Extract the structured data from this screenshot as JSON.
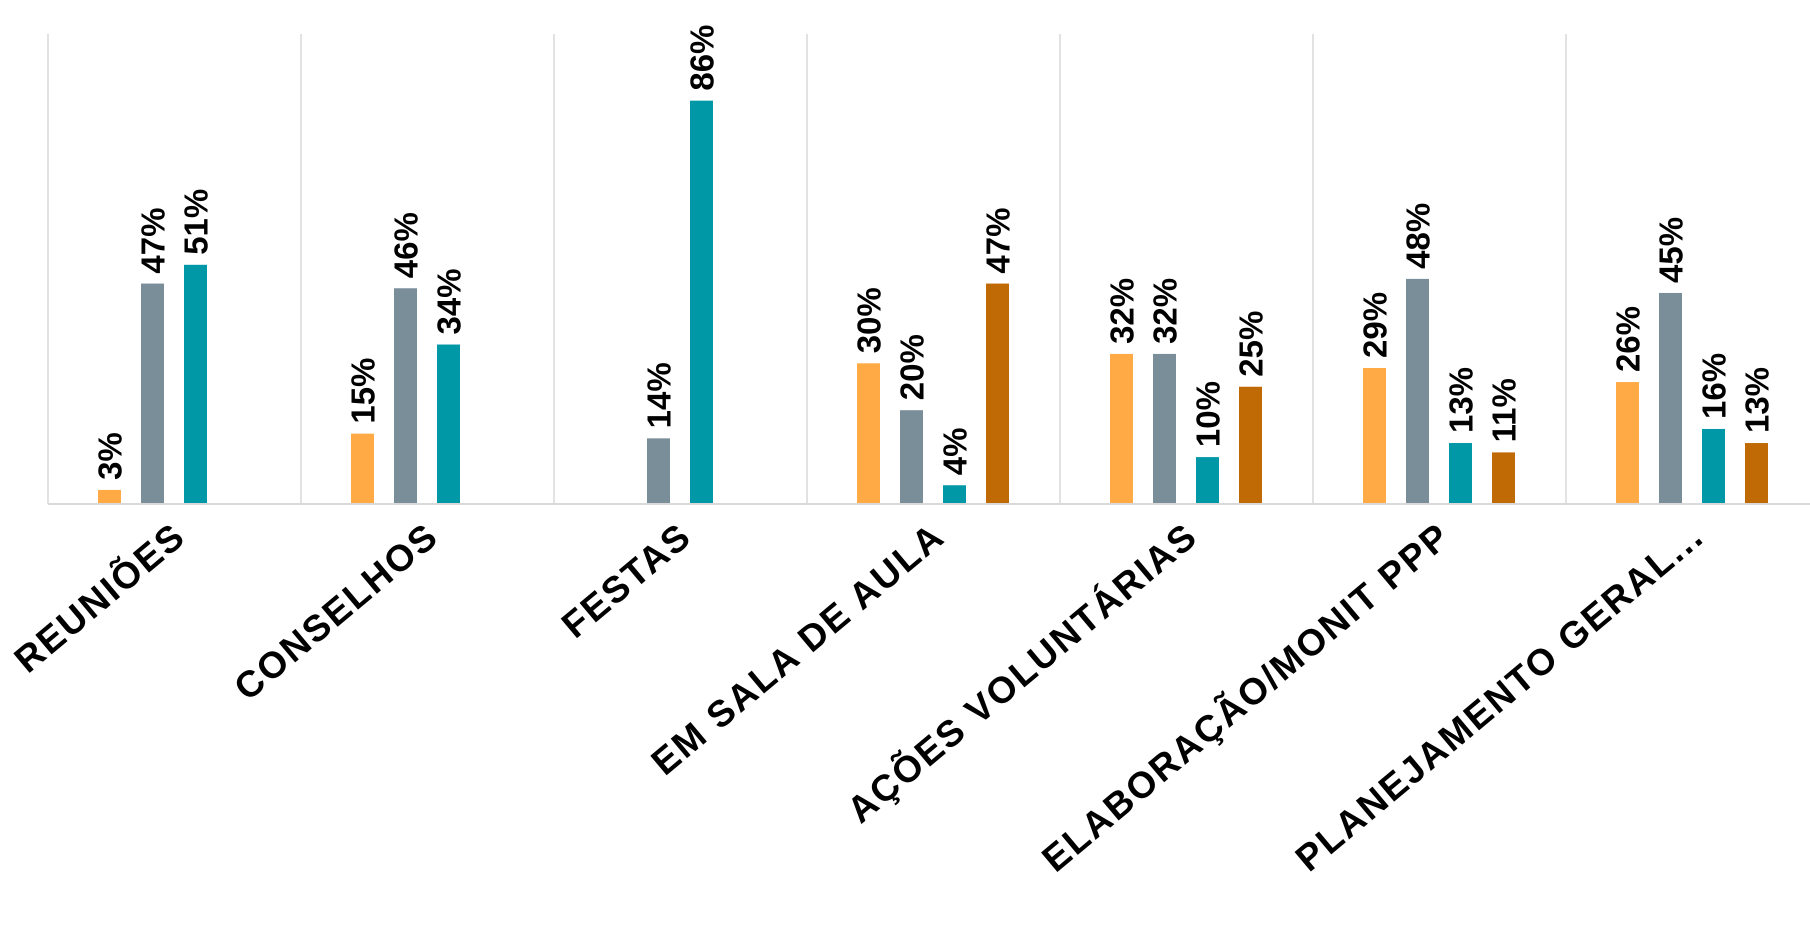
{
  "chart_data": {
    "type": "bar",
    "categories": [
      "REUNIÕES",
      "CONSELHOS",
      "FESTAS",
      "EM SALA DE AULA",
      "AÇÕES VOLUNTÁRIAS",
      "ELABORAÇÃO/MONIT PPP",
      "PLANEJAMENTO GERAL..."
    ],
    "series": [
      {
        "color": "#FFAA44",
        "values": [
          3,
          15,
          null,
          30,
          32,
          29,
          26
        ]
      },
      {
        "color": "#7A8E99",
        "values": [
          47,
          46,
          14,
          20,
          32,
          48,
          45
        ]
      },
      {
        "color": "#0097A7",
        "values": [
          51,
          34,
          86,
          4,
          10,
          13,
          16
        ]
      },
      {
        "color": "#C06A05",
        "values": [
          null,
          null,
          null,
          47,
          25,
          11,
          13
        ]
      }
    ],
    "value_suffix": "%",
    "title": "",
    "xlabel": "",
    "ylabel": "",
    "ylim": [
      0,
      100
    ],
    "grid": "vertical separators between categories",
    "legend": "none"
  }
}
